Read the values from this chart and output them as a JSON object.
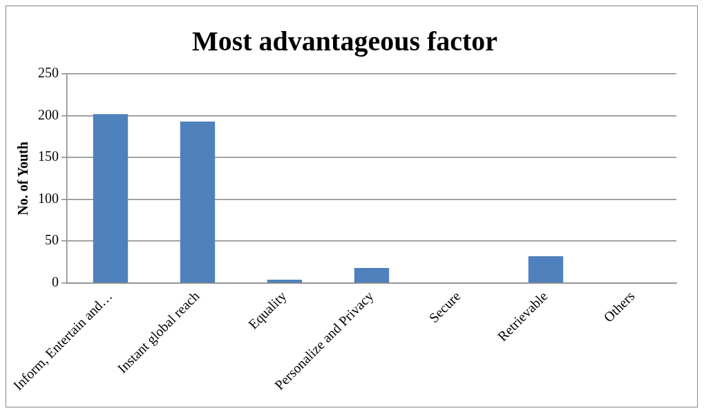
{
  "chart_data": {
    "type": "bar",
    "title": "Most advantageous factor",
    "ylabel": "No. of Youth",
    "categories": [
      "Inform, Entertain and…",
      "Instant global reach",
      "Equality",
      "Personalize and Privacy",
      "Secure",
      "Retrievable",
      "Others"
    ],
    "values": [
      202,
      193,
      4,
      18,
      0,
      32,
      0
    ],
    "color": "#4f81bd",
    "ylim": [
      0,
      250
    ],
    "yticks": [
      0,
      50,
      100,
      150,
      200,
      250
    ],
    "grid": "y",
    "legend": false
  }
}
